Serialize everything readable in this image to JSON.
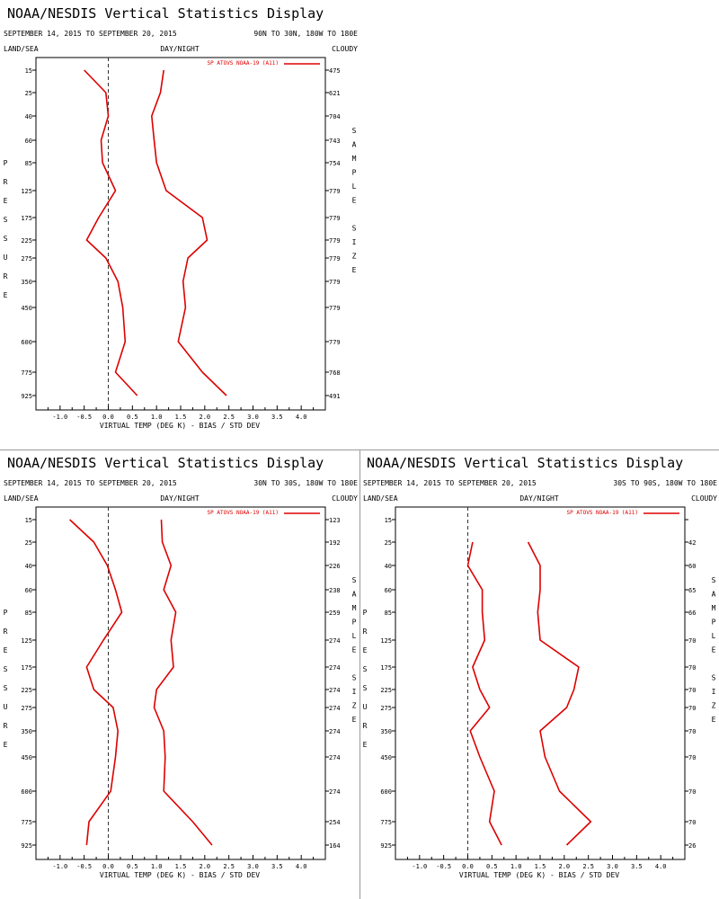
{
  "colors": {
    "series": "#dd0000",
    "axis": "#000000",
    "zero_line": "#333333",
    "divider": "#9a9a9a"
  },
  "chart_data": [
    {
      "type": "line",
      "title": "NOAA/NESDIS Vertical Statistics Display",
      "date_range": "SEPTEMBER 14, 2015 TO SEPTEMBER 20, 2015",
      "region": "90N TO 30N, 180W TO 180E",
      "left_header": "LAND/SEA",
      "center_header": "DAY/NIGHT",
      "right_header": "CLOUDY",
      "ylabel": "PRESSURE",
      "right_label": "SAMPLE SIZE",
      "xlabel": "VIRTUAL TEMP (DEG K) - BIAS / STD DEV",
      "legend": "SP ATOVS NOAA-19 (A11)",
      "pressure_levels": [
        "15",
        "25",
        "40",
        "60",
        "85",
        "125",
        "175",
        "225",
        "275",
        "350",
        "450",
        "600",
        "775",
        "925"
      ],
      "x_ticks": [
        "-1.0",
        "-0.5",
        "0.0",
        "0.5",
        "1.0",
        "1.5",
        "2.0",
        "2.5",
        "3.0",
        "3.5",
        "4.0"
      ],
      "xlim": [
        -1.5,
        4.5
      ],
      "sample_size": [
        "475",
        "621",
        "704",
        "743",
        "754",
        "779",
        "779",
        "779",
        "779",
        "779",
        "779",
        "779",
        "768",
        "491"
      ],
      "series": [
        {
          "name": "Bias",
          "values": [
            -0.5,
            -0.05,
            0.0,
            -0.15,
            -0.12,
            0.15,
            -0.2,
            -0.45,
            -0.05,
            0.2,
            0.3,
            0.35,
            0.15,
            0.6
          ]
        },
        {
          "name": "Std Dev",
          "values": [
            1.15,
            1.08,
            0.9,
            0.95,
            1.0,
            1.2,
            1.95,
            2.05,
            1.65,
            1.55,
            1.6,
            1.45,
            1.95,
            2.45
          ]
        }
      ]
    },
    {
      "type": "line",
      "title": "NOAA/NESDIS Vertical Statistics Display",
      "date_range": "SEPTEMBER 14, 2015 TO SEPTEMBER 20, 2015",
      "region": "30N TO 30S, 180W TO 180E",
      "left_header": "LAND/SEA",
      "center_header": "DAY/NIGHT",
      "right_header": "CLOUDY",
      "ylabel": "PRESSURE",
      "right_label": "SAMPLE SIZE",
      "xlabel": "VIRTUAL TEMP (DEG K) - BIAS / STD DEV",
      "legend": "SP ATOVS NOAA-19 (A11)",
      "pressure_levels": [
        "15",
        "25",
        "40",
        "60",
        "85",
        "125",
        "175",
        "225",
        "275",
        "350",
        "450",
        "600",
        "775",
        "925"
      ],
      "x_ticks": [
        "-1.0",
        "-0.5",
        "0.0",
        "0.5",
        "1.0",
        "1.5",
        "2.0",
        "2.5",
        "3.0",
        "3.5",
        "4.0"
      ],
      "xlim": [
        -1.5,
        4.5
      ],
      "sample_size": [
        "123",
        "192",
        "226",
        "238",
        "259",
        "274",
        "274",
        "274",
        "274",
        "274",
        "274",
        "274",
        "254",
        "164"
      ],
      "series": [
        {
          "name": "Bias",
          "values": [
            -0.8,
            -0.3,
            -0.02,
            0.15,
            0.28,
            -0.1,
            -0.45,
            -0.3,
            0.1,
            0.2,
            0.15,
            0.05,
            -0.4,
            -0.45
          ]
        },
        {
          "name": "Std Dev",
          "values": [
            1.1,
            1.12,
            1.3,
            1.15,
            1.4,
            1.3,
            1.35,
            1.0,
            0.95,
            1.15,
            1.18,
            1.15,
            1.75,
            2.15
          ]
        }
      ]
    },
    {
      "type": "line",
      "title": "NOAA/NESDIS Vertical Statistics Display",
      "date_range": "SEPTEMBER 14, 2015 TO SEPTEMBER 20, 2015",
      "region": "30S TO 90S, 180W TO 180E",
      "left_header": "LAND/SEA",
      "center_header": "DAY/NIGHT",
      "right_header": "CLOUDY",
      "ylabel": "PRESSURE",
      "right_label": "SAMPLE SIZE",
      "xlabel": "VIRTUAL TEMP (DEG K) - BIAS / STD DEV",
      "legend": "SP ATOVS NOAA-19 (A11)",
      "pressure_levels": [
        "15",
        "25",
        "40",
        "60",
        "85",
        "125",
        "175",
        "225",
        "275",
        "350",
        "450",
        "600",
        "775",
        "925"
      ],
      "x_ticks": [
        "-1.0",
        "-0.5",
        "0.0",
        "0.5",
        "1.0",
        "1.5",
        "2.0",
        "2.5",
        "3.0",
        "3.5",
        "4.0"
      ],
      "xlim": [
        -1.5,
        4.5
      ],
      "sample_size": [
        "",
        "42",
        "60",
        "65",
        "66",
        "70",
        "70",
        "70",
        "70",
        "70",
        "70",
        "70",
        "70",
        "26"
      ],
      "series": [
        {
          "name": "Bias",
          "values": [
            null,
            0.1,
            0.0,
            0.3,
            0.3,
            0.35,
            0.1,
            0.25,
            0.45,
            0.05,
            0.25,
            0.55,
            0.45,
            0.7
          ]
        },
        {
          "name": "Std Dev",
          "values": [
            null,
            1.25,
            1.5,
            1.5,
            1.45,
            1.5,
            2.3,
            2.2,
            2.05,
            1.5,
            1.6,
            1.9,
            2.55,
            2.05
          ]
        }
      ]
    }
  ]
}
